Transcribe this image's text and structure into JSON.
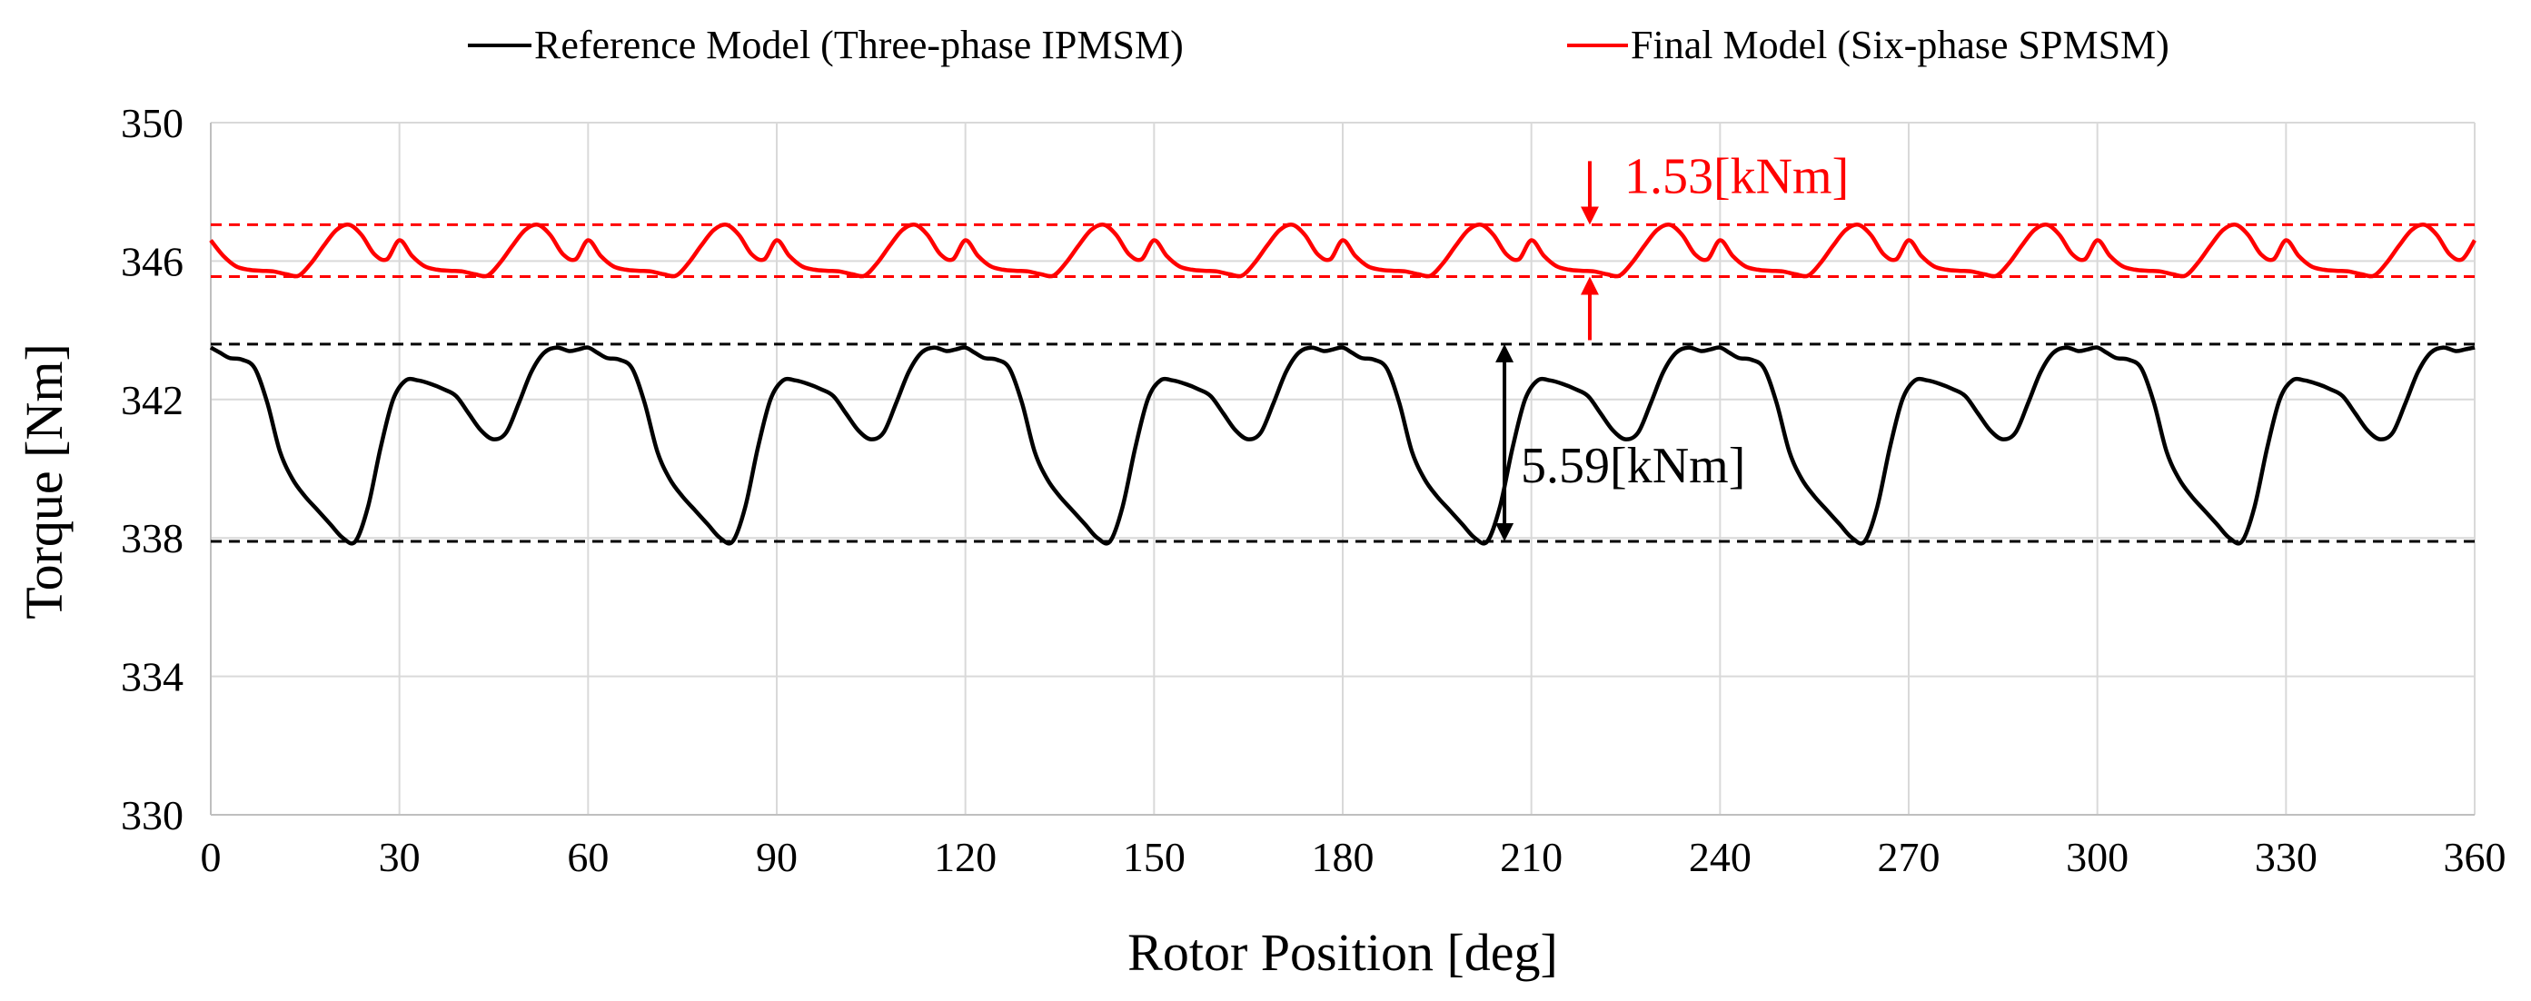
{
  "chart_data": {
    "type": "line",
    "title": "",
    "xlabel": "Rotor Position [deg]",
    "ylabel": "Torque [Nm]",
    "xlim": [
      0,
      360
    ],
    "ylim": [
      330,
      350
    ],
    "xticks": [
      0,
      30,
      60,
      90,
      120,
      150,
      180,
      210,
      240,
      270,
      300,
      330,
      360
    ],
    "yticks": [
      330,
      334,
      338,
      342,
      346,
      350
    ],
    "grid": true,
    "legend_position": "top",
    "series": [
      {
        "name": "Reference Model (Three-phase IPMSM)",
        "color": "#000000",
        "period": 60,
        "cycle_x": [
          0,
          1.5,
          3,
          5,
          7,
          9,
          11,
          13,
          15,
          17,
          19,
          21,
          23,
          25,
          27,
          29,
          31,
          33,
          35,
          37,
          39,
          41,
          43,
          45,
          47,
          49,
          51,
          53,
          55,
          57,
          58.5,
          60
        ],
        "cycle_y": [
          343.5,
          343.35,
          343.2,
          343.15,
          342.9,
          341.9,
          340.5,
          339.7,
          339.2,
          338.8,
          338.4,
          338.0,
          337.9,
          338.9,
          340.6,
          342.0,
          342.55,
          342.55,
          342.45,
          342.3,
          342.1,
          341.6,
          341.1,
          340.85,
          341.05,
          341.9,
          342.8,
          343.35,
          343.5,
          343.4,
          343.45,
          343.5
        ]
      },
      {
        "name": "Final Model (Six-phase SPMSM)",
        "color": "#ff0000",
        "period": 30,
        "cycle_x": [
          0,
          2,
          4,
          6,
          8,
          10,
          12,
          14,
          16,
          18,
          20,
          22,
          24,
          26,
          28,
          30
        ],
        "cycle_y": [
          346.6,
          346.15,
          345.85,
          345.75,
          345.72,
          345.7,
          345.62,
          345.58,
          345.95,
          346.45,
          346.9,
          347.05,
          346.75,
          346.2,
          346.05,
          346.6
        ]
      }
    ],
    "reference_lines": [
      {
        "name": "ref-max",
        "y": 343.6,
        "color": "#000000"
      },
      {
        "name": "ref-min",
        "y": 337.9,
        "color": "#000000"
      },
      {
        "name": "final-max",
        "y": 347.05,
        "color": "#ff0000"
      },
      {
        "name": "final-min",
        "y": 345.55,
        "color": "#ff0000"
      }
    ],
    "annotations": [
      {
        "name": "ripple-ref",
        "text": "5.59[kNm]",
        "x": 205,
        "y_from": 343.6,
        "y_to": 337.9,
        "color": "#000000"
      },
      {
        "name": "ripple-final",
        "text": "1.53[kNm]",
        "x": 219,
        "y_from": 347.05,
        "y_to": 345.55,
        "color": "#ff0000"
      }
    ]
  }
}
